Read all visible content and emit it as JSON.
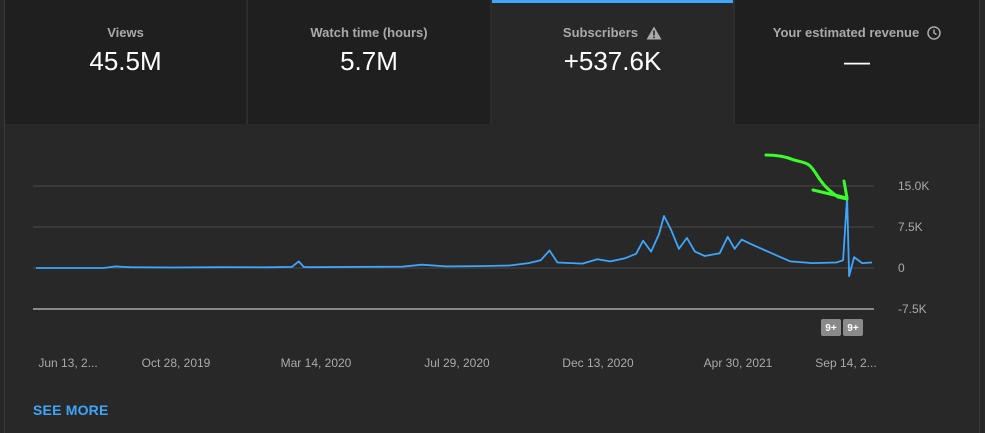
{
  "cards": [
    {
      "label": "Views",
      "value": "45.5M",
      "icon": null
    },
    {
      "label": "Watch time (hours)",
      "value": "5.7M",
      "icon": null
    },
    {
      "label": "Subscribers",
      "value": "+537.6K",
      "icon": "warning-icon",
      "selected": true
    },
    {
      "label": "Your estimated revenue",
      "value": "—",
      "icon": "clock-icon"
    }
  ],
  "chart_data": {
    "type": "line",
    "series": [
      {
        "color": "#3ea6ff",
        "points": [
          [
            "Jun 13, 2019",
            0
          ],
          [
            "Jul 25, 2019",
            0
          ],
          [
            "Aug 20, 2019",
            0
          ],
          [
            "Sep 1, 2019",
            300
          ],
          [
            "Sep 15, 2019",
            150
          ],
          [
            "Oct 28, 2019",
            100
          ],
          [
            "Dec 15, 2019",
            150
          ],
          [
            "Jan 30, 2020",
            120
          ],
          [
            "Feb 25, 2020",
            200
          ],
          [
            "Mar 3, 2020",
            1200
          ],
          [
            "Mar 8, 2020",
            200
          ],
          [
            "Mar 14, 2020",
            150
          ],
          [
            "May 1, 2020",
            200
          ],
          [
            "Jun 15, 2020",
            250
          ],
          [
            "Jul 5, 2020",
            600
          ],
          [
            "Jul 29, 2020",
            300
          ],
          [
            "Sep 1, 2020",
            350
          ],
          [
            "Oct 1, 2020",
            450
          ],
          [
            "Oct 20, 2020",
            900
          ],
          [
            "Nov 1, 2020",
            1400
          ],
          [
            "Nov 10, 2020",
            3200
          ],
          [
            "Nov 18, 2020",
            1000
          ],
          [
            "Dec 13, 2020",
            800
          ],
          [
            "Dec 28, 2020",
            1600
          ],
          [
            "Jan 10, 2021",
            1200
          ],
          [
            "Jan 25, 2021",
            1800
          ],
          [
            "Feb 5, 2021",
            2600
          ],
          [
            "Feb 12, 2021",
            5000
          ],
          [
            "Feb 20, 2021",
            3000
          ],
          [
            "Feb 28, 2021",
            6200
          ],
          [
            "Mar 5, 2021",
            9500
          ],
          [
            "Mar 12, 2021",
            7000
          ],
          [
            "Mar 20, 2021",
            3500
          ],
          [
            "Mar 28, 2021",
            5500
          ],
          [
            "Apr 5, 2021",
            3000
          ],
          [
            "Apr 15, 2021",
            2200
          ],
          [
            "Apr 30, 2021",
            2700
          ],
          [
            "May 8, 2021",
            5700
          ],
          [
            "May 15, 2021",
            3500
          ],
          [
            "May 22, 2021",
            5200
          ],
          [
            "May 30, 2021",
            4500
          ],
          [
            "Jun 10, 2021",
            3600
          ],
          [
            "Jun 25, 2021",
            2400
          ],
          [
            "Jul 10, 2021",
            1200
          ],
          [
            "Aug 1, 2021",
            900
          ],
          [
            "Aug 25, 2021",
            1000
          ],
          [
            "Sep 1, 2021",
            1400
          ],
          [
            "Sep 5, 2021",
            13000
          ],
          [
            "Sep 7, 2021",
            -1500
          ],
          [
            "Sep 12, 2021",
            2000
          ],
          [
            "Sep 20, 2021",
            900
          ],
          [
            "Sep 30, 2021",
            1000
          ]
        ]
      }
    ],
    "x_range": [
      "Jun 10, 2019",
      "Oct 2, 2021"
    ],
    "x_tick_labels": [
      "Jun 13, 2...",
      "Oct 28, 2019",
      "Mar 14, 2020",
      "Jul 29, 2020",
      "Dec 13, 2020",
      "Apr 30, 2021",
      "Sep 14, 2..."
    ],
    "y_tick_labels": [
      "15.0K",
      "7.5K",
      "0",
      "-7.5K"
    ],
    "ylim": [
      -7500,
      15000
    ],
    "grid": true,
    "annotations": {
      "markers": [
        "9+",
        "9+"
      ]
    }
  },
  "see_more_label": "SEE MORE",
  "colors": {
    "accent": "#3ea6ff",
    "annotation_arrow": "#3dff2a"
  }
}
